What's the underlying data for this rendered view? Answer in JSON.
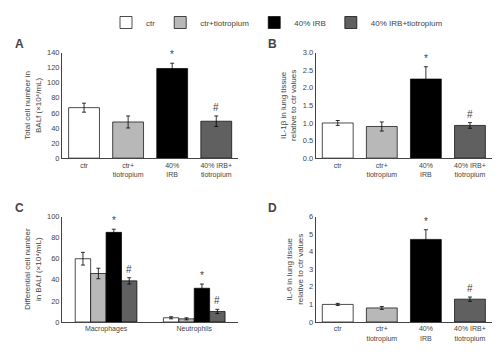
{
  "chart_data": [
    {
      "type": "bar",
      "title": "A",
      "ylabel": "Total cell number in\nBALf (×10⁴/mL)",
      "categories": [
        "ctr",
        "ctr+\ntiotropium",
        "40%\nIRB",
        "40% IRB+\ntiotropium"
      ],
      "values": [
        67,
        48,
        119,
        49
      ],
      "errors": [
        6,
        8,
        7,
        7
      ],
      "colors": [
        "#ffffff",
        "#b8b8b8",
        "#000000",
        "#606060"
      ],
      "ylim": [
        0,
        140
      ],
      "yticks": [
        0,
        20,
        40,
        60,
        80,
        100,
        120,
        140
      ],
      "grid": false,
      "annotations": [
        {
          "category": "40%\nIRB",
          "text": "*"
        },
        {
          "category": "40% IRB+\ntiotropium",
          "text": "#"
        }
      ]
    },
    {
      "type": "bar",
      "title": "B",
      "ylabel": "IL-1β in lung tissue\nrelative to ctr values",
      "categories": [
        "ctr",
        "ctr+\ntiotropium",
        "40%\nIRB",
        "40% IRB+\ntiotropium"
      ],
      "values": [
        1.0,
        0.9,
        2.25,
        0.93
      ],
      "errors": [
        0.07,
        0.13,
        0.35,
        0.08
      ],
      "colors": [
        "#ffffff",
        "#b8b8b8",
        "#000000",
        "#606060"
      ],
      "ylim": [
        0.0,
        3.0
      ],
      "yticks": [
        {
          "value": 0,
          "label": "0.0"
        },
        0.5,
        {
          "value": 1,
          "label": "1.0"
        },
        1.5,
        {
          "value": 2,
          "label": "2.0"
        },
        2.5,
        {
          "value": 3,
          "label": "3.0"
        }
      ],
      "grid": false,
      "annotations": [
        {
          "category": "40%\nIRB",
          "text": "*"
        },
        {
          "category": "40% IRB+\ntiotropium",
          "text": "#"
        }
      ]
    },
    {
      "type": "bar",
      "title": "C",
      "ylabel": "Differential cell number\nin BALf (×10⁴/mL)",
      "categories": [
        "Macrophages",
        "Neutrophils"
      ],
      "series": [
        {
          "name": "ctr",
          "color": "#ffffff",
          "values": [
            60,
            4
          ],
          "errors": [
            6,
            1
          ]
        },
        {
          "name": "ctr+tiotropium",
          "color": "#b8b8b8",
          "values": [
            46,
            3
          ],
          "errors": [
            5,
            1
          ]
        },
        {
          "name": "40% IRB",
          "color": "#000000",
          "values": [
            85,
            32
          ],
          "errors": [
            3,
            4
          ]
        },
        {
          "name": "40% IRB+tiotropium",
          "color": "#606060",
          "values": [
            39,
            10
          ],
          "errors": [
            3,
            2
          ]
        }
      ],
      "ylim": [
        0,
        100
      ],
      "yticks": [
        0,
        20,
        40,
        60,
        80,
        100
      ],
      "grid": false,
      "legend": "top",
      "annotations": [
        {
          "category": "Macrophages",
          "series": "40% IRB",
          "text": "*"
        },
        {
          "category": "Macrophages",
          "series": "40% IRB+tiotropium",
          "text": "#"
        },
        {
          "category": "Neutrophils",
          "series": "40% IRB",
          "text": "*"
        },
        {
          "category": "Neutrophils",
          "series": "40% IRB+tiotropium",
          "text": "#"
        }
      ]
    },
    {
      "type": "bar",
      "title": "D",
      "ylabel": "IL-6 in lung tissue\nrelative to ctr values",
      "categories": [
        "ctr",
        "ctr+\ntiotropium",
        "40%\nIRB",
        "40% IRB+\ntiotropium"
      ],
      "values": [
        1.0,
        0.8,
        4.7,
        1.3
      ],
      "errors": [
        0.06,
        0.08,
        0.55,
        0.12
      ],
      "colors": [
        "#ffffff",
        "#b8b8b8",
        "#000000",
        "#606060"
      ],
      "ylim": [
        0,
        6
      ],
      "yticks": [
        0,
        1,
        2,
        3,
        4,
        5,
        6
      ],
      "grid": false,
      "annotations": [
        {
          "category": "40%\nIRB",
          "text": "*"
        },
        {
          "category": "40% IRB+\ntiotropium",
          "text": "#"
        }
      ]
    }
  ]
}
